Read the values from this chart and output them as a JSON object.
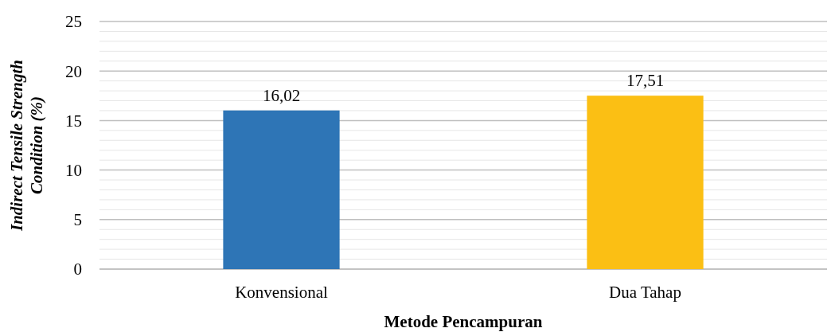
{
  "chart_data": {
    "type": "bar",
    "xlabel": "Metode Pencampuran",
    "ylabel": "Indirect Tensile Strength Condition (%)",
    "categories": [
      "Konvensional",
      "Dua Tahap"
    ],
    "values": [
      16.02,
      17.51
    ],
    "colors": [
      "#2e75b6",
      "#fbbf14"
    ],
    "value_labels": [
      "16,02",
      "17,51"
    ],
    "ylim": [
      0,
      25
    ],
    "yticks": [
      0,
      {
        "value": 1,
        "label": null
      },
      {
        "value": 2,
        "label": null
      },
      {
        "value": 3,
        "label": null
      },
      {
        "value": 4,
        "label": null
      },
      5,
      {
        "value": 6,
        "label": null
      },
      {
        "value": 7,
        "label": null
      },
      {
        "value": 8,
        "label": null
      },
      {
        "value": 9,
        "label": null
      },
      10,
      {
        "value": 11,
        "label": null
      },
      {
        "value": 12,
        "label": null
      },
      {
        "value": 13,
        "label": null
      },
      {
        "value": 14,
        "label": null
      },
      15,
      {
        "value": 16,
        "label": null
      },
      {
        "value": 17,
        "label": null
      },
      {
        "value": 18,
        "label": null
      },
      {
        "value": 19,
        "label": null
      },
      20,
      {
        "value": 21,
        "label": null
      },
      {
        "value": 22,
        "label": null
      },
      {
        "value": 23,
        "label": null
      },
      {
        "value": 24,
        "label": null
      },
      25
    ],
    "grid": "y"
  }
}
